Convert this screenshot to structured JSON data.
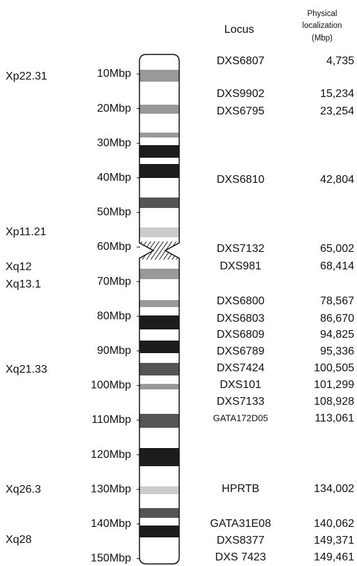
{
  "header": {
    "locus": "Locus",
    "physical": [
      "Physical",
      "localization",
      "(Mbp)"
    ]
  },
  "bands": [
    "Xp22.31",
    "Xp11.21",
    "Xq12",
    "Xq13.1",
    "Xq21.33",
    "Xq26.3",
    "Xq28"
  ],
  "scale": [
    "10Mbp",
    "20Mbp",
    "30Mbp",
    "40Mbp",
    "50Mbp",
    "60Mbp",
    "70Mbp",
    "80Mbp",
    "90Mbp",
    "100Mbp",
    "110Mbp",
    "120Mbp",
    "130Mbp",
    "140Mbp",
    "150Mbp"
  ],
  "loci": [
    {
      "name": "DXS6807",
      "position": "4,735"
    },
    {
      "name": "DXS9902",
      "position": "15,234"
    },
    {
      "name": "DXS6795",
      "position": "23,254"
    },
    {
      "name": "DXS6810",
      "position": "42,804"
    },
    {
      "name": "DXS7132",
      "position": "65,002"
    },
    {
      "name": "DXS981",
      "position": "68,414"
    },
    {
      "name": "DXS6800",
      "position": "78,567"
    },
    {
      "name": "DXS6803",
      "position": "86,670"
    },
    {
      "name": "DXS6809",
      "position": "94,825"
    },
    {
      "name": "DXS6789",
      "position": "95,336"
    },
    {
      "name": "DXS7424",
      "position": "100,505"
    },
    {
      "name": "DXS101",
      "position": "101,299"
    },
    {
      "name": "DXS7133",
      "position": "108,928"
    },
    {
      "name": "GATA172D05",
      "position": "113,061"
    },
    {
      "name": "HPRTB",
      "position": "134,002"
    },
    {
      "name": "GATA31E08",
      "position": "140,062"
    },
    {
      "name": "DXS8377",
      "position": "149,371"
    },
    {
      "name": "DXS 7423",
      "position": "149,461"
    }
  ]
}
